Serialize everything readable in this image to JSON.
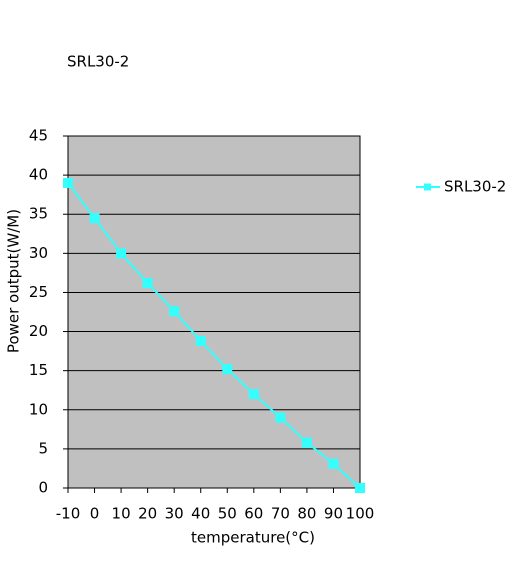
{
  "chart_data": {
    "type": "line",
    "title": "SRL30-2",
    "x_label": "temperature(°C)",
    "y_label": "Power output(W/M)",
    "x": [
      -10,
      0,
      10,
      20,
      30,
      40,
      50,
      60,
      70,
      80,
      90,
      100
    ],
    "series": [
      {
        "name": "SRL30-2",
        "color": "#33ffff",
        "values": [
          39.0,
          34.5,
          30.0,
          26.2,
          22.6,
          18.8,
          15.2,
          12.0,
          9.0,
          5.8,
          3.1,
          0
        ]
      }
    ],
    "xlim": [
      -10,
      100
    ],
    "xticks": [
      -10,
      0,
      10,
      20,
      30,
      40,
      50,
      60,
      70,
      80,
      90,
      100
    ],
    "ylim": [
      0,
      45
    ],
    "yticks": [
      0,
      5,
      10,
      15,
      20,
      25,
      30,
      35,
      40,
      45
    ],
    "grid": true,
    "legend": "right"
  }
}
